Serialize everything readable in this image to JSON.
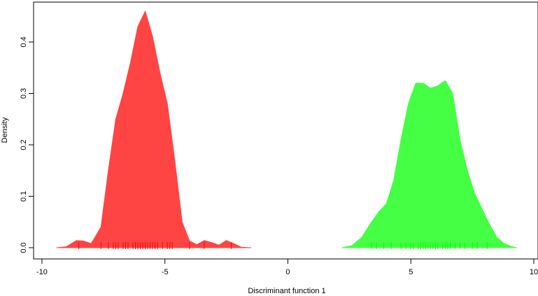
{
  "chart_data": {
    "type": "area",
    "x_label": "Discriminant function 1",
    "y_label": "Density",
    "xlim": [
      -10.34,
      10.17
    ],
    "ylim": [
      -0.0218,
      0.4776
    ],
    "xticks": [
      -10,
      -5,
      0,
      5,
      10
    ],
    "yticks": [
      {
        "value": 0,
        "label": "0.0"
      },
      {
        "value": 0.1,
        "label": "0.1"
      },
      {
        "value": 0.2,
        "label": "0.2"
      },
      {
        "value": 0.3,
        "label": "0.3"
      },
      {
        "value": 0.4,
        "label": "0.4"
      }
    ],
    "series": [
      {
        "color": "#ff4444",
        "rug_color": "#ff0000",
        "x": [
          -9.4,
          -9.0,
          -8.6,
          -8.3,
          -8.0,
          -7.6,
          -7.3,
          -7.0,
          -6.7,
          -6.4,
          -6.1,
          -5.8,
          -5.5,
          -5.2,
          -4.9,
          -4.6,
          -4.3,
          -4.0,
          -3.7,
          -3.4,
          -3.1,
          -2.8,
          -2.5,
          -2.2,
          -1.9,
          -1.5
        ],
        "values": [
          0,
          0.002,
          0.014,
          0.013,
          0.008,
          0.04,
          0.15,
          0.25,
          0.3,
          0.36,
          0.43,
          0.46,
          0.41,
          0.34,
          0.28,
          0.17,
          0.05,
          0.013,
          0.006,
          0.014,
          0.01,
          0.005,
          0.014,
          0.008,
          0.001,
          0
        ],
        "rug": [
          -8.5,
          -7.6,
          -7.3,
          -7.1,
          -7.0,
          -6.9,
          -6.7,
          -6.6,
          -6.5,
          -6.3,
          -6.2,
          -6.1,
          -6.0,
          -5.9,
          -5.8,
          -5.7,
          -5.6,
          -5.5,
          -5.4,
          -5.3,
          -5.1,
          -4.9,
          -4.8,
          -4.7,
          -4.0,
          -3.4,
          -2.3
        ]
      },
      {
        "color": "#44ff44",
        "rug_color": "#00ff00",
        "x": [
          2.2,
          2.6,
          3.0,
          3.4,
          3.7,
          4.0,
          4.3,
          4.6,
          4.9,
          5.2,
          5.5,
          5.8,
          6.1,
          6.4,
          6.7,
          7.0,
          7.3,
          7.6,
          7.9,
          8.2,
          8.5,
          8.8,
          9.1,
          9.3
        ],
        "values": [
          0,
          0.004,
          0.02,
          0.05,
          0.07,
          0.085,
          0.13,
          0.21,
          0.28,
          0.32,
          0.32,
          0.31,
          0.315,
          0.325,
          0.3,
          0.21,
          0.15,
          0.105,
          0.075,
          0.045,
          0.02,
          0.008,
          0.002,
          0
        ],
        "rug": [
          3.4,
          3.6,
          3.9,
          4.2,
          4.6,
          4.8,
          5.0,
          5.1,
          5.3,
          5.4,
          5.5,
          5.6,
          5.7,
          5.8,
          5.9,
          6.0,
          6.1,
          6.3,
          6.4,
          6.5,
          6.6,
          6.8,
          7.0,
          7.2,
          7.5,
          7.7,
          8.1
        ]
      }
    ]
  }
}
